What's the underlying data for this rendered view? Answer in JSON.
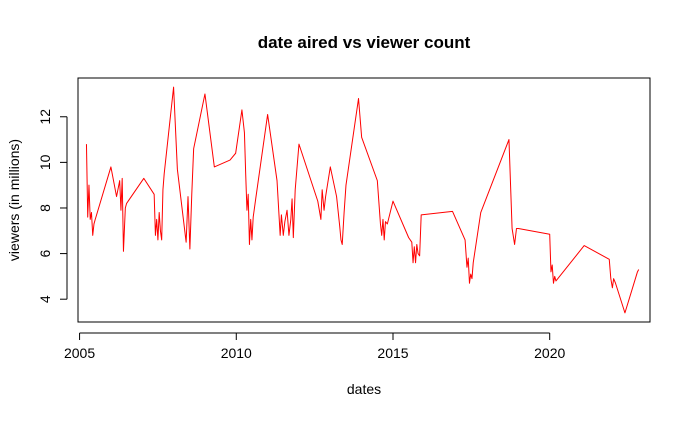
{
  "chart_data": {
    "type": "line",
    "title": "date aired vs viewer count",
    "xlabel": "dates",
    "ylabel": "viewers (in millions)",
    "xlim": [
      2004.95,
      2023.2
    ],
    "ylim": [
      3.0,
      13.7
    ],
    "x_ticks": [
      2005,
      2010,
      2015,
      2020
    ],
    "x_tick_labels": [
      "2005",
      "2010",
      "2015",
      "2020"
    ],
    "y_ticks": [
      4,
      6,
      8,
      10,
      12
    ],
    "y_tick_labels": [
      "4",
      "6",
      "8",
      "10",
      "12"
    ],
    "grid": false,
    "legend": "none",
    "series": [
      {
        "color": "#ff0000",
        "x": [
          2005.22,
          2005.26,
          2005.3,
          2005.34,
          2005.38,
          2005.42,
          2005.46,
          2005.5,
          2006.0,
          2006.18,
          2006.28,
          2006.32,
          2006.36,
          2006.4,
          2006.46,
          2006.5,
          2007.05,
          2007.38,
          2007.42,
          2007.46,
          2007.5,
          2007.54,
          2007.58,
          2007.62,
          2007.66,
          2007.7,
          2008.0,
          2008.12,
          2008.4,
          2008.46,
          2008.52,
          2008.58,
          2008.64,
          2009.0,
          2009.3,
          2009.8,
          2009.98,
          2010.18,
          2010.26,
          2010.3,
          2010.34,
          2010.38,
          2010.42,
          2010.46,
          2010.5,
          2010.54,
          2010.62,
          2011.0,
          2011.3,
          2011.4,
          2011.44,
          2011.5,
          2011.55,
          2011.62,
          2011.68,
          2011.74,
          2011.78,
          2011.82,
          2011.88,
          2012.0,
          2012.6,
          2012.7,
          2012.74,
          2012.8,
          2012.85,
          2013.0,
          2013.2,
          2013.3,
          2013.34,
          2013.38,
          2013.44,
          2013.5,
          2013.9,
          2014.0,
          2014.5,
          2014.6,
          2014.64,
          2014.68,
          2014.72,
          2014.76,
          2014.82,
          2015.0,
          2015.5,
          2015.6,
          2015.64,
          2015.68,
          2015.72,
          2015.76,
          2015.8,
          2015.85,
          2015.9,
          2016.9,
          2017.3,
          2017.36,
          2017.4,
          2017.44,
          2017.48,
          2017.52,
          2017.56,
          2017.8,
          2018.7,
          2018.8,
          2018.88,
          2018.94,
          2019.0,
          2020.0,
          2020.04,
          2020.08,
          2020.12,
          2020.16,
          2020.2,
          2021.1,
          2021.9,
          2021.95,
          2022.0,
          2022.04,
          2022.1,
          2022.4,
          2022.8,
          2022.84
        ],
        "y": [
          10.8,
          7.6,
          9.0,
          7.5,
          7.8,
          6.8,
          7.3,
          7.5,
          9.8,
          8.5,
          9.2,
          7.9,
          9.3,
          6.1,
          8.0,
          8.2,
          9.3,
          8.6,
          6.8,
          7.5,
          6.6,
          7.8,
          7.0,
          6.6,
          8.8,
          9.5,
          13.3,
          9.7,
          6.5,
          8.5,
          6.2,
          8.6,
          10.6,
          13.0,
          9.8,
          10.1,
          10.4,
          12.3,
          11.3,
          9.5,
          7.9,
          8.6,
          6.4,
          7.5,
          6.6,
          7.6,
          8.4,
          12.1,
          9.2,
          6.8,
          7.7,
          6.8,
          7.4,
          7.9,
          6.8,
          7.5,
          8.4,
          6.7,
          8.8,
          10.8,
          8.3,
          7.5,
          8.8,
          7.9,
          8.5,
          9.8,
          8.5,
          7.2,
          6.6,
          6.4,
          7.8,
          9.0,
          12.8,
          11.1,
          9.2,
          7.3,
          6.8,
          7.5,
          6.6,
          7.4,
          7.3,
          8.3,
          6.7,
          6.5,
          5.6,
          6.3,
          5.6,
          6.4,
          6.0,
          5.9,
          7.7,
          7.85,
          6.6,
          5.4,
          5.8,
          4.7,
          5.1,
          4.9,
          5.6,
          7.8,
          11.0,
          7.1,
          6.4,
          7.1,
          7.1,
          6.85,
          5.2,
          5.5,
          4.7,
          5.0,
          4.8,
          6.35,
          5.75,
          4.9,
          4.5,
          4.9,
          4.7,
          3.4,
          5.2,
          5.3
        ]
      }
    ]
  }
}
